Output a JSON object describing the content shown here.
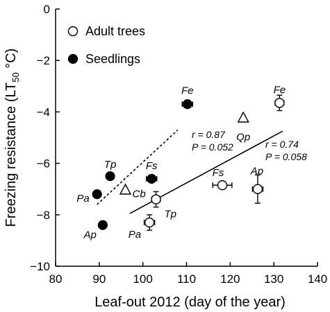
{
  "chart_data": {
    "type": "scatter",
    "xlabel": "Leaf-out 2012 (day of the year)",
    "ylabel": {
      "prefix": "Freezing resistance (LT",
      "sub": "50",
      "suffix": " °C)"
    },
    "xlim": [
      80,
      140
    ],
    "ylim": [
      -10,
      0
    ],
    "xticks": [
      80,
      90,
      100,
      110,
      120,
      130,
      140
    ],
    "yticks": [
      0,
      -2,
      -4,
      -6,
      -8,
      -10
    ],
    "legend": {
      "position": "top-left",
      "entries": [
        {
          "label": "Adult trees",
          "marker": "open-circle"
        },
        {
          "label": "Seedlings",
          "marker": "filled-circle"
        }
      ]
    },
    "series": [
      {
        "name": "Adult trees",
        "marker": "open-circle",
        "points": [
          {
            "label": "Fe",
            "x": 131.3,
            "y": -3.65,
            "xerr": 1.0,
            "yerr": 0.3
          },
          {
            "label": "Fs",
            "x": 118.2,
            "y": -6.85,
            "xerr": 2.2,
            "yerr": 0.1
          },
          {
            "label": "Ap",
            "x": 126.3,
            "y": -7.0,
            "xerr": 1.2,
            "yerr": 0.55
          },
          {
            "label": "Tp",
            "x": 103.0,
            "y": -7.4,
            "xerr": 1.0,
            "yerr": 0.3
          },
          {
            "label": "Pa",
            "x": 101.5,
            "y": -8.3,
            "xerr": 1.2,
            "yerr": 0.3
          }
        ]
      },
      {
        "name": "Seedlings",
        "marker": "filled-circle",
        "points": [
          {
            "label": "Fe",
            "x": 110.2,
            "y": -3.7,
            "xerr": 1.2,
            "yerr": 0
          },
          {
            "label": "Tp",
            "x": 92.5,
            "y": -6.5,
            "xerr": 0,
            "yerr": 0
          },
          {
            "label": "Fs",
            "x": 102.0,
            "y": -6.6,
            "xerr": 1.2,
            "yerr": 0
          },
          {
            "label": "Pa",
            "x": 89.5,
            "y": -7.2,
            "xerr": 0,
            "yerr": 0
          },
          {
            "label": "Ap",
            "x": 90.8,
            "y": -8.4,
            "xerr": 0,
            "yerr": 0
          }
        ]
      },
      {
        "marker": "open-triangle",
        "points": [
          {
            "label": "Qp",
            "x": 123.0,
            "y": -4.25,
            "xerr": 0,
            "yerr": 0
          },
          {
            "label": "Cb",
            "x": 96.0,
            "y": -7.05,
            "xerr": 0,
            "yerr": 0
          }
        ]
      }
    ],
    "regressions": [
      {
        "group": "Seedlings",
        "style": "dashed",
        "from": [
          89.5,
          -7.6
        ],
        "to": [
          108.0,
          -4.7
        ],
        "r_text": "r = 0.87",
        "p_text": "P = 0.052"
      },
      {
        "group": "Adult trees",
        "style": "solid",
        "from": [
          97.0,
          -7.95
        ],
        "to": [
          132.0,
          -4.75
        ],
        "r_text": "r = 0.74",
        "p_text": "P = 0.058"
      }
    ]
  }
}
